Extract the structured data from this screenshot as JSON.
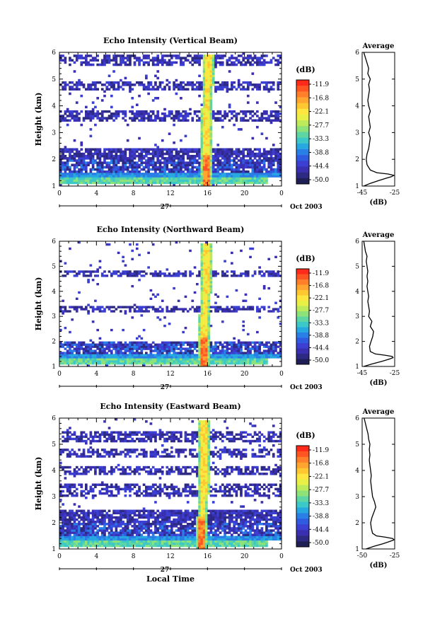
{
  "time_axis": {
    "ticks": [
      "0",
      "4",
      "8",
      "12",
      "16",
      "20",
      "0"
    ],
    "tick_values": [
      0,
      4,
      8,
      12,
      16,
      20,
      24
    ],
    "date_label": "27",
    "month_label": "Oct 2003",
    "xlabel": "Local Time"
  },
  "height_axis": {
    "ylabel": "Height (km)",
    "ticks": [
      "1",
      "2",
      "3",
      "4",
      "5",
      "6"
    ],
    "tick_values": [
      1,
      2,
      3,
      4,
      5,
      6
    ]
  },
  "colorbar": {
    "unit": "(dB)",
    "labels": [
      "-11.9",
      "-16.8",
      "-22.1",
      "-27.7",
      "-33.3",
      "-38.8",
      "-44.4",
      "-50.0"
    ],
    "colors": [
      "#ff2a1a",
      "#ff5522",
      "#ff7f2a",
      "#ffa530",
      "#ffc832",
      "#ffe640",
      "#e8f048",
      "#bcea5a",
      "#8ee27a",
      "#5ed6a4",
      "#3cc8c8",
      "#28a8e0",
      "#2a7fe6",
      "#2f5be0",
      "#3b3fd2",
      "#3a2fb0",
      "#2c2a82",
      "#1f1f55"
    ]
  },
  "chart_data": [
    {
      "type": "heatmap",
      "title": "Echo Intensity (Vertical Beam)",
      "ylabel": "Height (km)",
      "xlim": [
        0,
        24
      ],
      "ylim": [
        1,
        6
      ],
      "colorbar_range_dB": [
        -50.0,
        -11.9
      ],
      "spike_time_h": 15.8,
      "noise_bands_km": [
        [
          1.1,
          1.3
        ],
        [
          1.3,
          1.5
        ],
        [
          1.5,
          2.4
        ],
        [
          3.4,
          3.8
        ],
        [
          4.6,
          4.9
        ],
        [
          5.5,
          5.9
        ]
      ]
    },
    {
      "type": "line",
      "title": "Average",
      "xlabel": "(dB)",
      "xlim": [
        -45,
        -25
      ],
      "xticks": [
        "-45",
        "-25"
      ],
      "ylim": [
        1,
        6
      ],
      "yticks": [
        "1",
        "2",
        "3",
        "4",
        "5",
        "6"
      ],
      "y": [
        1.0,
        1.1,
        1.2,
        1.3,
        1.35,
        1.4,
        1.45,
        1.5,
        1.6,
        1.8,
        2.0,
        2.2,
        2.4,
        2.6,
        2.8,
        3.0,
        3.2,
        3.4,
        3.6,
        3.8,
        4.0,
        4.2,
        4.4,
        4.6,
        4.8,
        5.0,
        5.2,
        5.4,
        5.6,
        5.8,
        6.0
      ],
      "x": [
        -44,
        -40,
        -35,
        -30,
        -27,
        -25.5,
        -29,
        -36,
        -40,
        -42,
        -42.5,
        -42,
        -41,
        -40.5,
        -40,
        -41,
        -40,
        -40.5,
        -41,
        -40,
        -41,
        -41.5,
        -41,
        -40.5,
        -41,
        -40,
        -41.5,
        -41,
        -42,
        -43,
        -44
      ]
    },
    {
      "type": "heatmap",
      "title": "Echo Intensity (Northward Beam)",
      "ylabel": "Height (km)",
      "xlim": [
        0,
        24
      ],
      "ylim": [
        1,
        6
      ],
      "colorbar_range_dB": [
        -50.0,
        -11.9
      ],
      "spike_time_h": 15.6,
      "noise_bands_km": [
        [
          1.1,
          1.3
        ],
        [
          1.3,
          1.5
        ],
        [
          1.5,
          2.0
        ],
        [
          3.2,
          3.4
        ],
        [
          4.6,
          4.8
        ]
      ]
    },
    {
      "type": "line",
      "title": "Average",
      "xlabel": "(dB)",
      "xlim": [
        -45,
        -25
      ],
      "xticks": [
        "-45",
        "-25"
      ],
      "ylim": [
        1,
        6
      ],
      "yticks": [
        "1",
        "2",
        "3",
        "4",
        "5",
        "6"
      ],
      "y": [
        1.0,
        1.1,
        1.2,
        1.3,
        1.35,
        1.4,
        1.45,
        1.5,
        1.6,
        1.8,
        2.0,
        2.2,
        2.4,
        2.6,
        2.8,
        3.0,
        3.2,
        3.4,
        3.6,
        3.8,
        4.0,
        4.2,
        4.4,
        4.6,
        4.8,
        5.0,
        5.2,
        5.4,
        5.6,
        5.8,
        6.0
      ],
      "x": [
        -44,
        -39,
        -33,
        -28,
        -26,
        -26.5,
        -31,
        -37,
        -40,
        -40.5,
        -39.5,
        -38.5,
        -38,
        -40,
        -39,
        -41,
        -40.5,
        -41,
        -41.5,
        -41,
        -41.5,
        -42,
        -41.5,
        -42,
        -41.5,
        -42,
        -42.5,
        -42,
        -43,
        -43.5,
        -44
      ]
    },
    {
      "type": "heatmap",
      "title": "Echo Intensity (Eastward Beam)",
      "ylabel": "Height (km)",
      "xlabel": "Local Time",
      "xlim": [
        0,
        24
      ],
      "ylim": [
        1,
        6
      ],
      "colorbar_range_dB": [
        -50.0,
        -11.9
      ],
      "spike_time_h": 15.4,
      "noise_bands_km": [
        [
          1.1,
          1.3
        ],
        [
          1.3,
          1.5
        ],
        [
          1.5,
          2.5
        ],
        [
          3.0,
          3.5
        ],
        [
          3.8,
          4.2
        ],
        [
          4.5,
          4.8
        ],
        [
          5.1,
          5.5
        ]
      ]
    },
    {
      "type": "line",
      "title": "Average",
      "xlabel": "(dB)",
      "xlim": [
        -50,
        -25
      ],
      "xticks": [
        "-50",
        "-25"
      ],
      "ylim": [
        1,
        6
      ],
      "yticks": [
        "1",
        "2",
        "3",
        "4",
        "5",
        "6"
      ],
      "y": [
        1.0,
        1.1,
        1.2,
        1.3,
        1.35,
        1.4,
        1.45,
        1.5,
        1.6,
        1.8,
        2.0,
        2.2,
        2.4,
        2.6,
        2.8,
        3.0,
        3.2,
        3.4,
        3.6,
        3.8,
        4.0,
        4.2,
        4.4,
        4.6,
        4.8,
        5.0,
        5.2,
        5.4,
        5.6,
        5.8,
        6.0
      ],
      "x": [
        -47,
        -41,
        -34,
        -28,
        -25.5,
        -26.5,
        -32,
        -39,
        -42,
        -43,
        -43.5,
        -42.5,
        -41,
        -39.5,
        -40.5,
        -42,
        -42.5,
        -43,
        -43.5,
        -43,
        -43.5,
        -44,
        -44.5,
        -44,
        -44.5,
        -44,
        -45,
        -45.5,
        -46.5,
        -47.5,
        -48.5
      ]
    }
  ]
}
